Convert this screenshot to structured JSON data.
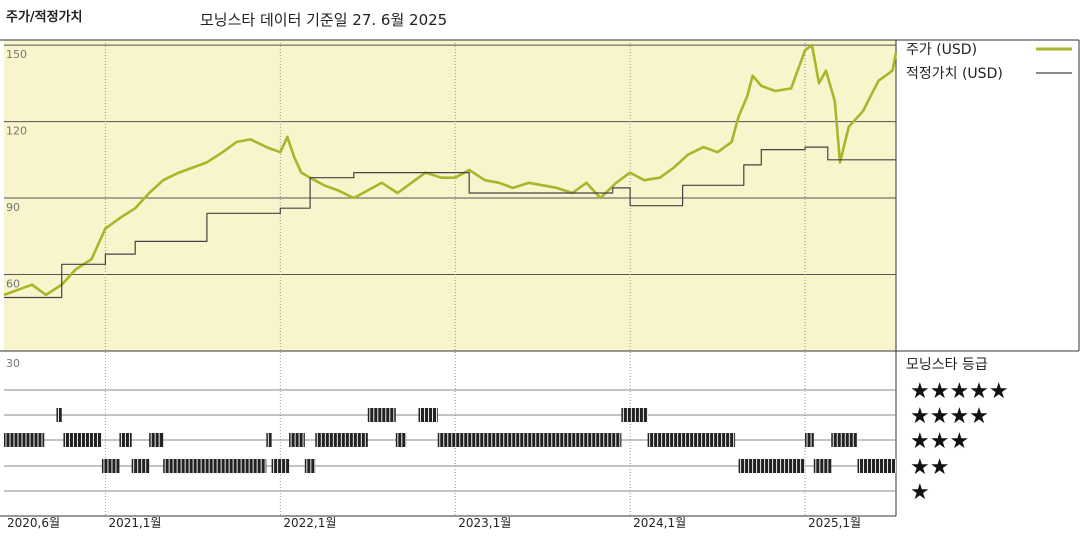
{
  "header": {
    "title": "주가/적정가치",
    "subtitle": "모닝스타 데이터 기준일 27. 6월 2025"
  },
  "chart_data": {
    "type": "line",
    "title": "주가/적정가치",
    "subtitle": "모닝스타 데이터 기준일 27. 6월 2025",
    "y_ticks": [
      150,
      120,
      90,
      60
    ],
    "rating_axis_label": "30",
    "ylim": [
      30,
      152
    ],
    "x_ticks": [
      "2020,6월",
      "2021,1월",
      "2022,1월",
      "2023,1월",
      "2024,1월",
      "2025,1월"
    ],
    "x_tick_years": [
      2020.42,
      2021.0,
      2022.0,
      2023.0,
      2024.0,
      2025.0
    ],
    "xlim": [
      2020.42,
      2025.52
    ],
    "grid": true,
    "legend_position": "right",
    "series": [
      {
        "name": "주가 (USD)",
        "color": "#a9b52a",
        "points": [
          [
            2020.42,
            52
          ],
          [
            2020.5,
            54
          ],
          [
            2020.58,
            56
          ],
          [
            2020.66,
            52
          ],
          [
            2020.75,
            56
          ],
          [
            2020.83,
            62
          ],
          [
            2020.92,
            66
          ],
          [
            2021.0,
            78
          ],
          [
            2021.08,
            82
          ],
          [
            2021.17,
            86
          ],
          [
            2021.25,
            92
          ],
          [
            2021.33,
            97
          ],
          [
            2021.42,
            100
          ],
          [
            2021.5,
            102
          ],
          [
            2021.58,
            104
          ],
          [
            2021.67,
            108
          ],
          [
            2021.75,
            112
          ],
          [
            2021.83,
            113
          ],
          [
            2021.92,
            110
          ],
          [
            2022.0,
            108
          ],
          [
            2022.04,
            114
          ],
          [
            2022.08,
            106
          ],
          [
            2022.12,
            100
          ],
          [
            2022.17,
            98
          ],
          [
            2022.25,
            95
          ],
          [
            2022.33,
            93
          ],
          [
            2022.42,
            90
          ],
          [
            2022.5,
            93
          ],
          [
            2022.58,
            96
          ],
          [
            2022.67,
            92
          ],
          [
            2022.75,
            96
          ],
          [
            2022.83,
            100
          ],
          [
            2022.92,
            98
          ],
          [
            2023.0,
            98
          ],
          [
            2023.08,
            101
          ],
          [
            2023.17,
            97
          ],
          [
            2023.25,
            96
          ],
          [
            2023.33,
            94
          ],
          [
            2023.42,
            96
          ],
          [
            2023.5,
            95
          ],
          [
            2023.58,
            94
          ],
          [
            2023.67,
            92
          ],
          [
            2023.75,
            96
          ],
          [
            2023.83,
            90
          ],
          [
            2023.92,
            96
          ],
          [
            2024.0,
            100
          ],
          [
            2024.08,
            97
          ],
          [
            2024.17,
            98
          ],
          [
            2024.25,
            102
          ],
          [
            2024.33,
            107
          ],
          [
            2024.42,
            110
          ],
          [
            2024.5,
            108
          ],
          [
            2024.58,
            112
          ],
          [
            2024.62,
            122
          ],
          [
            2024.67,
            130
          ],
          [
            2024.7,
            138
          ],
          [
            2024.75,
            134
          ],
          [
            2024.83,
            132
          ],
          [
            2024.92,
            133
          ],
          [
            2025.0,
            148
          ],
          [
            2025.04,
            150
          ],
          [
            2025.08,
            135
          ],
          [
            2025.12,
            140
          ],
          [
            2025.17,
            128
          ],
          [
            2025.2,
            104
          ],
          [
            2025.25,
            118
          ],
          [
            2025.33,
            124
          ],
          [
            2025.42,
            136
          ],
          [
            2025.5,
            140
          ],
          [
            2025.52,
            147
          ]
        ]
      },
      {
        "name": "적정가치 (USD)",
        "color": "#444444",
        "step": true,
        "points": [
          [
            2020.42,
            51
          ],
          [
            2020.75,
            64
          ],
          [
            2021.0,
            68
          ],
          [
            2021.17,
            73
          ],
          [
            2021.58,
            84
          ],
          [
            2022.0,
            86
          ],
          [
            2022.17,
            98
          ],
          [
            2022.42,
            100
          ],
          [
            2022.92,
            100
          ],
          [
            2023.08,
            92
          ],
          [
            2023.5,
            92
          ],
          [
            2023.9,
            94
          ],
          [
            2024.0,
            87
          ],
          [
            2024.3,
            95
          ],
          [
            2024.65,
            103
          ],
          [
            2024.75,
            109
          ],
          [
            2025.0,
            110
          ],
          [
            2025.08,
            110
          ],
          [
            2025.13,
            105
          ],
          [
            2025.52,
            105
          ]
        ]
      }
    ],
    "rating_legend_title": "모닝스타 등급",
    "rating_levels": [
      "★★★★★",
      "★★★★",
      "★★★",
      "★★",
      "★"
    ],
    "rating_periods": [
      {
        "stars": 3,
        "from": 2020.42,
        "to": 2020.65
      },
      {
        "stars": 4,
        "from": 2020.72,
        "to": 2020.75
      },
      {
        "stars": 3,
        "from": 2020.76,
        "to": 2020.98
      },
      {
        "stars": 2,
        "from": 2020.98,
        "to": 2021.08
      },
      {
        "stars": 3,
        "from": 2021.08,
        "to": 2021.15
      },
      {
        "stars": 2,
        "from": 2021.15,
        "to": 2021.25
      },
      {
        "stars": 3,
        "from": 2021.25,
        "to": 2021.33
      },
      {
        "stars": 2,
        "from": 2021.33,
        "to": 2021.92
      },
      {
        "stars": 3,
        "from": 2021.92,
        "to": 2021.95
      },
      {
        "stars": 2,
        "from": 2021.95,
        "to": 2022.05
      },
      {
        "stars": 3,
        "from": 2022.05,
        "to": 2022.14
      },
      {
        "stars": 2,
        "from": 2022.14,
        "to": 2022.2
      },
      {
        "stars": 3,
        "from": 2022.2,
        "to": 2022.5
      },
      {
        "stars": 4,
        "from": 2022.5,
        "to": 2022.66
      },
      {
        "stars": 3,
        "from": 2022.66,
        "to": 2022.72
      },
      {
        "stars": 4,
        "from": 2022.79,
        "to": 2022.9
      },
      {
        "stars": 3,
        "from": 2022.9,
        "to": 2023.95
      },
      {
        "stars": 4,
        "from": 2023.95,
        "to": 2024.1
      },
      {
        "stars": 3,
        "from": 2024.1,
        "to": 2024.6
      },
      {
        "stars": 2,
        "from": 2024.62,
        "to": 2025.0
      },
      {
        "stars": 3,
        "from": 2025.0,
        "to": 2025.05
      },
      {
        "stars": 2,
        "from": 2025.05,
        "to": 2025.15
      },
      {
        "stars": 3,
        "from": 2025.15,
        "to": 2025.3
      },
      {
        "stars": 2,
        "from": 2025.3,
        "to": 2025.52
      }
    ]
  }
}
